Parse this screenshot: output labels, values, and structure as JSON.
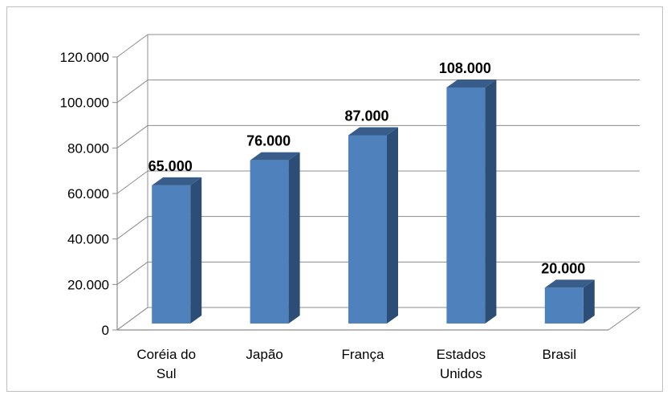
{
  "chart_data": {
    "type": "bar",
    "categories": [
      "Coréia do Sul",
      "Japão",
      "França",
      "Estados Unidos",
      "Brasil"
    ],
    "category_lines": [
      [
        "Coréia do",
        "Sul"
      ],
      [
        "Japão"
      ],
      [
        "França"
      ],
      [
        "Estados",
        "Unidos"
      ],
      [
        "Brasil"
      ]
    ],
    "values": [
      65000,
      76000,
      87000,
      108000,
      20000
    ],
    "data_labels": [
      "65.000",
      "76.000",
      "87.000",
      "108.000",
      "20.000"
    ],
    "yticks": [
      0,
      20000,
      40000,
      60000,
      80000,
      100000,
      120000
    ],
    "ytick_labels": [
      "0",
      "20.000",
      "40.000",
      "60.000",
      "80.000",
      "100.000",
      "120.000"
    ],
    "ylim": [
      0,
      120000
    ],
    "title": "",
    "xlabel": "",
    "ylabel": "",
    "grid": true,
    "legend": "none",
    "bar_colors": {
      "front": "#4F81BD",
      "side": "#2C4D75",
      "top": "#385D8A"
    }
  }
}
